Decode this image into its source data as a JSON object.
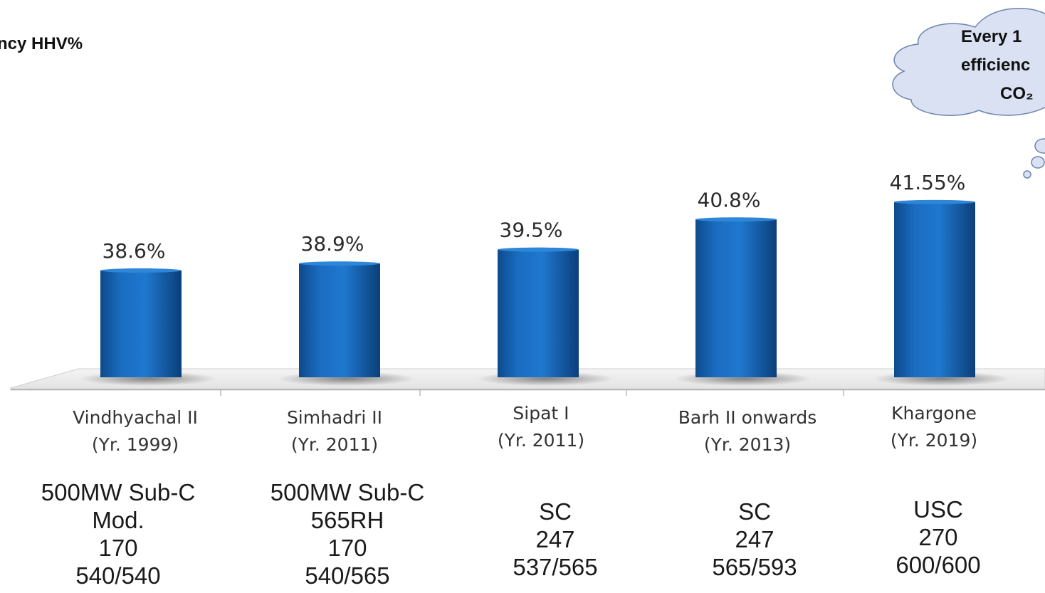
{
  "chart_data": {
    "type": "bar",
    "title": "ncy HHV%",
    "categories": [
      "Vindhyachal II",
      "Simhadri II",
      "Sipat I",
      "Barh II onwards",
      "Khargone"
    ],
    "years": [
      "(Yr. 1999)",
      "(Yr. 2011)",
      "(Yr. 2011)",
      "(Yr. 2013)",
      "(Yr. 2019)"
    ],
    "values": [
      38.6,
      38.9,
      39.5,
      40.8,
      41.55
    ],
    "value_labels": [
      "38.6%",
      "38.9%",
      "39.5%",
      "40.8%",
      "41.55%"
    ],
    "specs": [
      [
        "500MW Sub-C",
        "Mod.",
        "170",
        "540/540"
      ],
      [
        "500MW Sub-C",
        "565RH",
        "170",
        "540/565"
      ],
      [
        "SC",
        "247",
        "537/565"
      ],
      [
        "SC",
        "247",
        "565/593"
      ],
      [
        "USC",
        "270",
        "600/600"
      ]
    ],
    "bar_color": "#1565b5",
    "grid": false,
    "legend": "none"
  },
  "callout": {
    "line1": "Every 1",
    "line2": "efficienc",
    "line3": "CO₂"
  }
}
